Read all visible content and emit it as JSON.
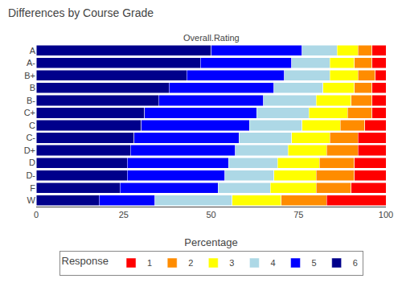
{
  "chart_data": {
    "type": "bar",
    "orientation": "horizontal",
    "stacked": true,
    "title": "Differences by Course Grade",
    "subtitle": "Overall.Rating",
    "x_label": "Percentage",
    "legend_title": "Response",
    "legend": "bottom",
    "grid": false,
    "categories": [
      "A",
      "A-",
      "B+",
      "B",
      "B-",
      "C+",
      "C",
      "C-",
      "D+",
      "D",
      "D-",
      "F",
      "W"
    ],
    "series": [
      {
        "name": "6",
        "color": "#00008B",
        "values": [
          50,
          47,
          43,
          38,
          35,
          31,
          30,
          28,
          27,
          26,
          26,
          24,
          18
        ]
      },
      {
        "name": "5",
        "color": "#0000FF",
        "values": [
          26,
          26,
          28,
          30,
          30,
          32,
          31,
          30,
          30,
          29,
          28,
          28,
          16
        ]
      },
      {
        "name": "4",
        "color": "#ADD8E6",
        "values": [
          10,
          11,
          13,
          14,
          15,
          15,
          15,
          15,
          15,
          14,
          14,
          15,
          22
        ]
      },
      {
        "name": "3",
        "color": "#FFFF00",
        "values": [
          6,
          7,
          8,
          9,
          10,
          11,
          11,
          11,
          11,
          12,
          12,
          13,
          14
        ]
      },
      {
        "name": "2",
        "color": "#FF8C00",
        "values": [
          4,
          5,
          5,
          5,
          6,
          7,
          7,
          8,
          9,
          10,
          11,
          10,
          13
        ]
      },
      {
        "name": "1",
        "color": "#FF0000",
        "values": [
          4,
          4,
          3,
          4,
          4,
          4,
          6,
          8,
          8,
          9,
          9,
          10,
          17
        ]
      }
    ],
    "xlim": [
      0,
      100
    ],
    "xticks": [
      0,
      25,
      50,
      75,
      100
    ]
  }
}
